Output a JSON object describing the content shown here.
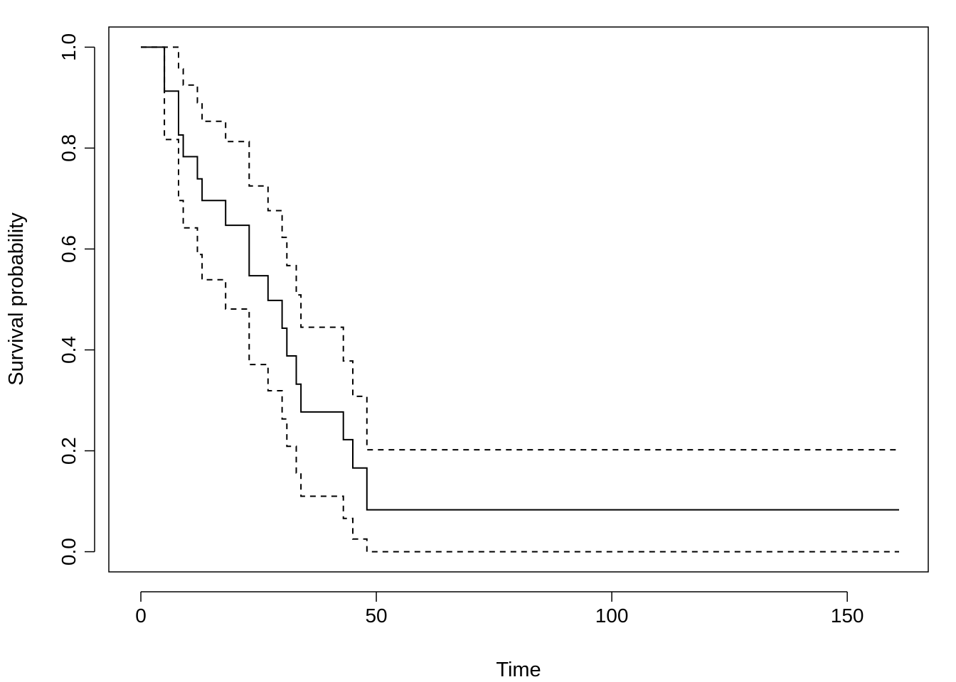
{
  "chart_data": {
    "type": "line",
    "title": "",
    "xlabel": "Time",
    "ylabel": "Survival probability",
    "xlim": [
      -6.8,
      167.2
    ],
    "ylim": [
      -0.04,
      1.04
    ],
    "x_ticks": [
      0,
      50,
      100,
      150
    ],
    "y_ticks": [
      0.0,
      0.2,
      0.4,
      0.6,
      0.8,
      1.0
    ],
    "x_tick_labels": [
      "0",
      "50",
      "100",
      "150"
    ],
    "y_tick_labels": [
      "0.0",
      "0.2",
      "0.4",
      "0.6",
      "0.8",
      "1.0"
    ],
    "grid": false,
    "legend": "none",
    "series": [
      {
        "style": "solid",
        "color": "#000000",
        "x": [
          0,
          5,
          8,
          9,
          12,
          13,
          18,
          23,
          27,
          30,
          31,
          33,
          34,
          43,
          45,
          48,
          161
        ],
        "y": [
          1.0,
          0.913,
          0.826,
          0.783,
          0.739,
          0.696,
          0.647,
          0.547,
          0.498,
          0.443,
          0.388,
          0.332,
          0.277,
          0.222,
          0.166,
          0.083,
          0.083
        ]
      },
      {
        "style": "dashed",
        "color": "#000000",
        "x": [
          0,
          5,
          8,
          9,
          12,
          13,
          18,
          23,
          27,
          30,
          31,
          33,
          34,
          43,
          45,
          48,
          161
        ],
        "y": [
          1.0,
          1.0,
          0.957,
          0.925,
          0.89,
          0.853,
          0.813,
          0.725,
          0.676,
          0.623,
          0.567,
          0.509,
          0.445,
          0.378,
          0.308,
          0.202,
          0.202
        ]
      },
      {
        "style": "dashed",
        "color": "#000000",
        "x": [
          0,
          5,
          8,
          9,
          12,
          13,
          18,
          23,
          27,
          30,
          31,
          33,
          34,
          43,
          45,
          48,
          161
        ],
        "y": [
          1.0,
          0.817,
          0.696,
          0.642,
          0.589,
          0.539,
          0.481,
          0.371,
          0.319,
          0.263,
          0.209,
          0.156,
          0.11,
          0.066,
          0.025,
          0.0,
          0.0
        ]
      }
    ]
  }
}
